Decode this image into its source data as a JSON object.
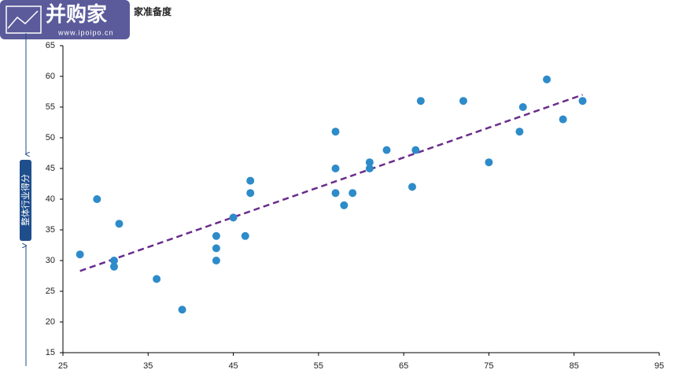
{
  "logo": {
    "name": "并购家",
    "url": "www.ipoipo.cn"
  },
  "chart_data": {
    "type": "scatter",
    "title": "家准备度",
    "y_label": "整体行业得分",
    "x": [
      27,
      29,
      31.6,
      31,
      31,
      36,
      39,
      43,
      43,
      43,
      45,
      46.4,
      47,
      47,
      57,
      57,
      57,
      58,
      59,
      61,
      61,
      63,
      66,
      66.4,
      67,
      72,
      75,
      78.6,
      79,
      81.8,
      83.7,
      86
    ],
    "values": [
      31,
      40,
      36,
      30,
      29,
      27,
      22,
      34,
      32,
      30,
      37,
      34,
      43,
      41,
      51,
      45,
      41,
      39,
      41,
      46,
      45,
      48,
      42,
      48,
      56,
      56,
      46,
      51,
      55,
      59.5,
      53,
      56
    ],
    "color": "#2e8bc9",
    "trendline": {
      "x": [
        27,
        86
      ],
      "values": [
        28.3,
        57
      ],
      "color": "#6a2c8c"
    },
    "xlim": [
      25,
      95
    ],
    "xticks": [
      25,
      35,
      45,
      55,
      65,
      75,
      85,
      95
    ],
    "ylim": [
      15,
      65
    ],
    "yticks": [
      15,
      20,
      25,
      30,
      35,
      40,
      45,
      50,
      55,
      60,
      65
    ]
  }
}
